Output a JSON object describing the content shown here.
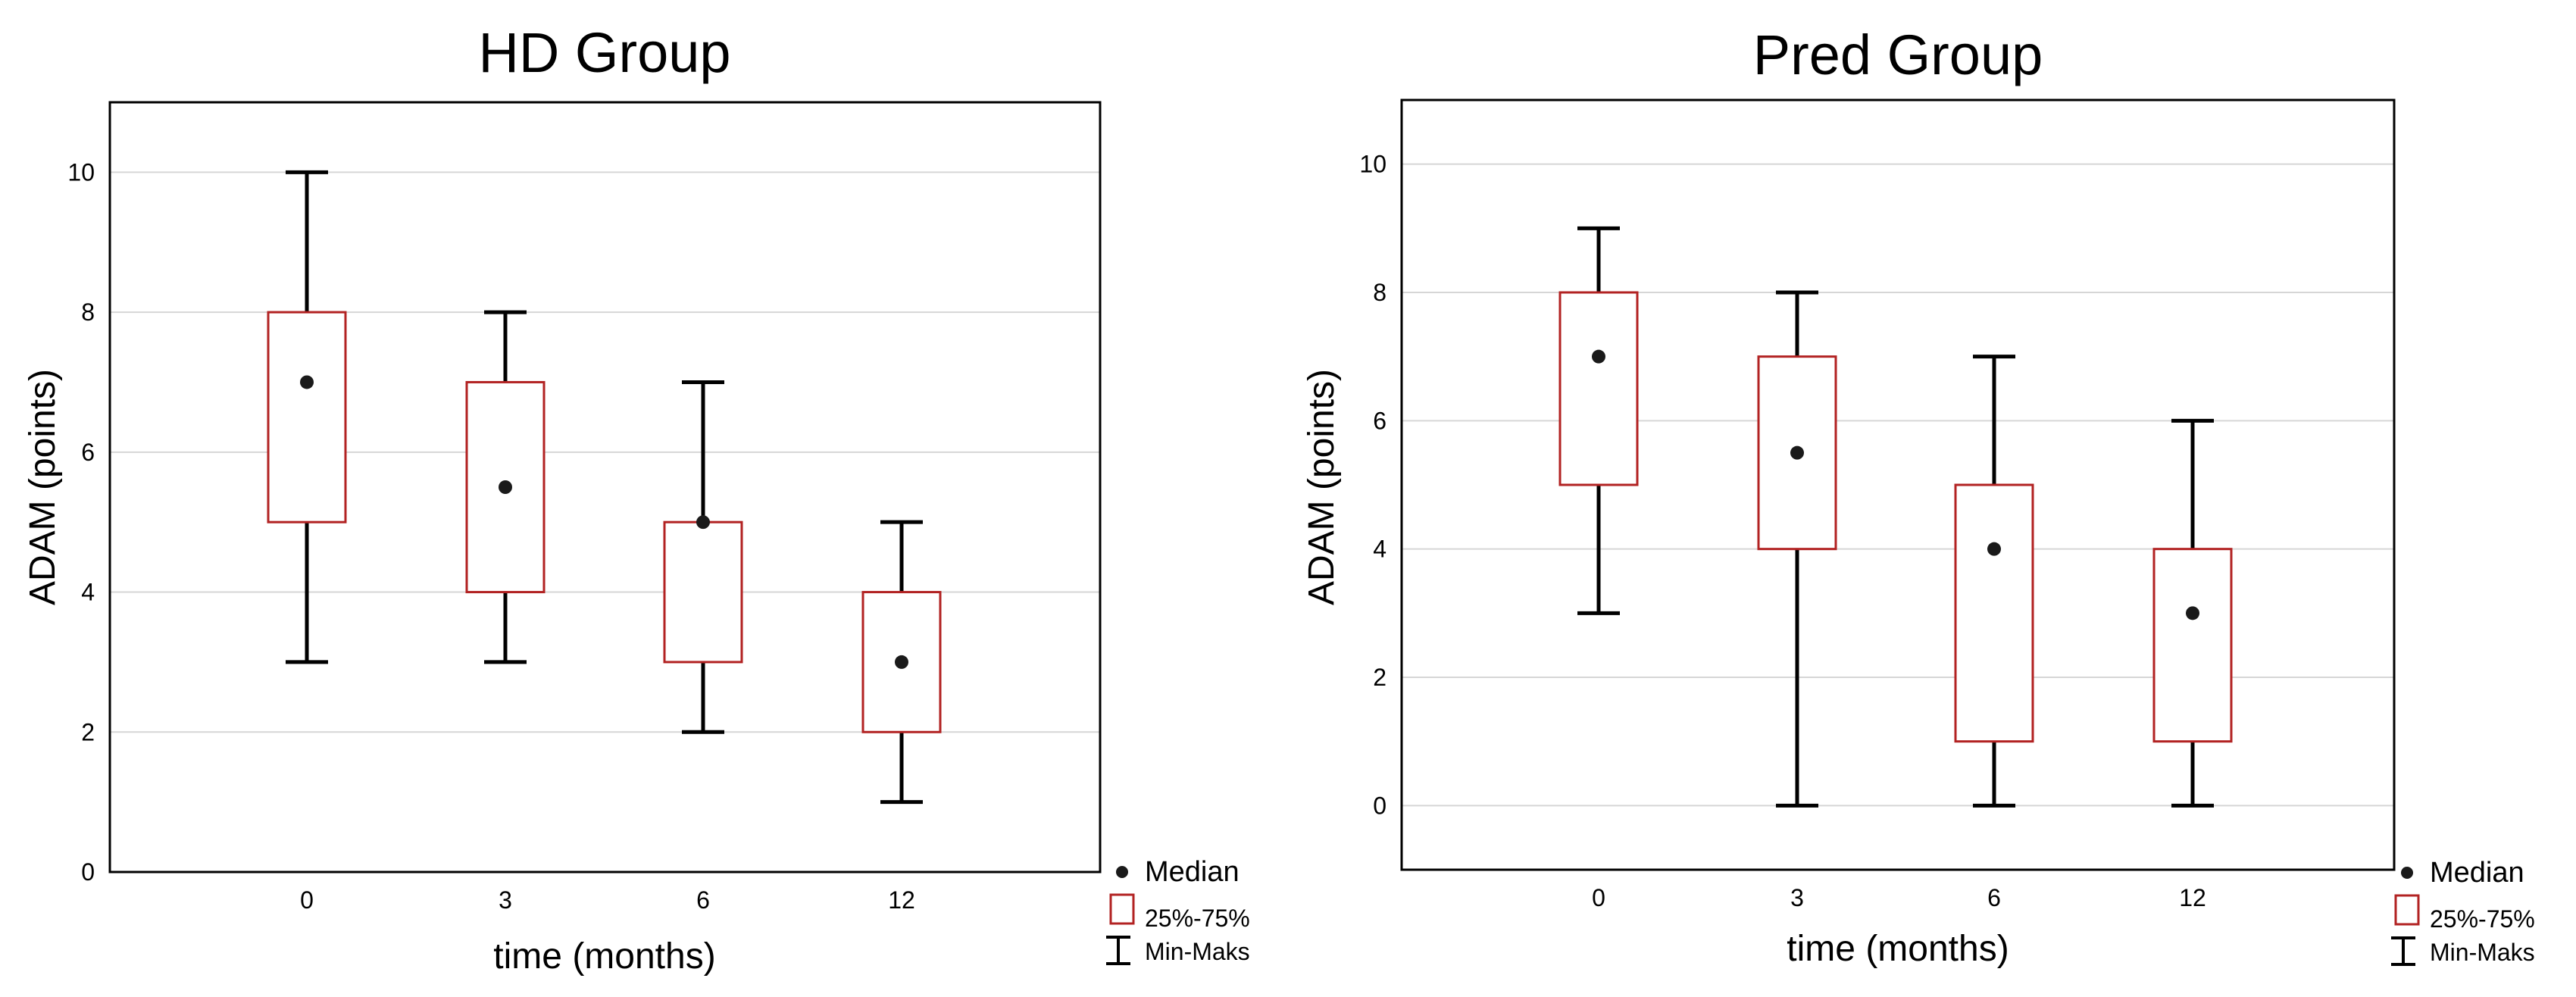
{
  "chart_data": [
    {
      "type": "box",
      "title": "HD Group",
      "xlabel": "time (months)",
      "ylabel": "ADAM (points)",
      "categories": [
        "0",
        "3",
        "6",
        "12"
      ],
      "ylim": [
        0,
        11
      ],
      "yticks": [
        0,
        2,
        4,
        6,
        8,
        10
      ],
      "grid": true,
      "boxes": [
        {
          "category": "0",
          "min": 3,
          "q1": 5,
          "median": 7,
          "q3": 8,
          "max": 10
        },
        {
          "category": "3",
          "min": 3,
          "q1": 4,
          "median": 5.5,
          "q3": 7,
          "max": 8
        },
        {
          "category": "6",
          "min": 2,
          "q1": 3,
          "median": 5,
          "q3": 5,
          "max": 7
        },
        {
          "category": "12",
          "min": 1,
          "q1": 2,
          "median": 3,
          "q3": 4,
          "max": 5
        }
      ],
      "legend": {
        "position": "bottom-right-outside",
        "median_label": "Median",
        "box_label": "25%-75%",
        "whisker_label": "Min-Maks"
      }
    },
    {
      "type": "box",
      "title": "Pred Group",
      "xlabel": "time (months)",
      "ylabel": "ADAM (points)",
      "categories": [
        "0",
        "3",
        "6",
        "12"
      ],
      "ylim": [
        -1,
        11
      ],
      "yticks": [
        0,
        2,
        4,
        6,
        8,
        10
      ],
      "grid": true,
      "boxes": [
        {
          "category": "0",
          "min": 3,
          "q1": 5,
          "median": 7,
          "q3": 8,
          "max": 9
        },
        {
          "category": "3",
          "min": 0,
          "q1": 4,
          "median": 5.5,
          "q3": 7,
          "max": 8
        },
        {
          "category": "6",
          "min": 0,
          "q1": 1,
          "median": 4,
          "q3": 5,
          "max": 7
        },
        {
          "category": "12",
          "min": 0,
          "q1": 1,
          "median": 3,
          "q3": 4,
          "max": 6
        }
      ],
      "legend": {
        "position": "bottom-right-outside",
        "median_label": "Median",
        "box_label": "25%-75%",
        "whisker_label": "Min-Maks"
      }
    }
  ],
  "colors": {
    "box_edge": "#b22222",
    "whisker": "#000000",
    "median_dot": "#1a1a1a",
    "grid": "#d6d6d6",
    "frame": "#000000"
  }
}
